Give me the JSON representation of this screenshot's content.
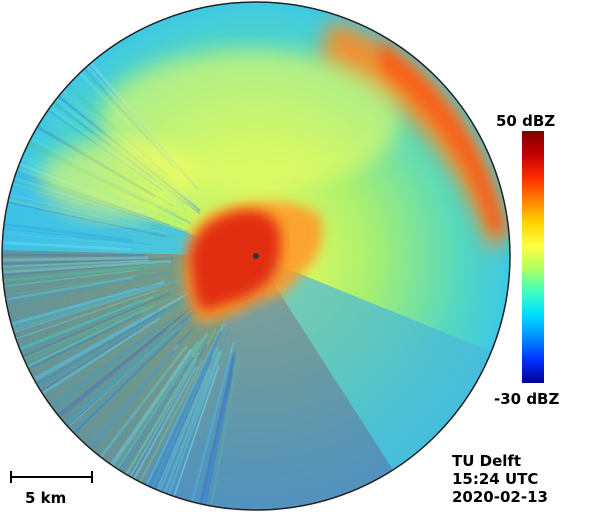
{
  "colorbar": {
    "max_label": "50 dBZ",
    "min_label": "-30 dBZ",
    "min_value": -30,
    "max_value": 50
  },
  "scale": {
    "label": "5 km",
    "km": 5
  },
  "info": {
    "org": "TU Delft",
    "time": "15:24 UTC",
    "date": "2020-02-13"
  },
  "colors": {
    "ring": "#222222",
    "radar_bg": "#43c3e0",
    "clutter": "#7a7f6c"
  }
}
